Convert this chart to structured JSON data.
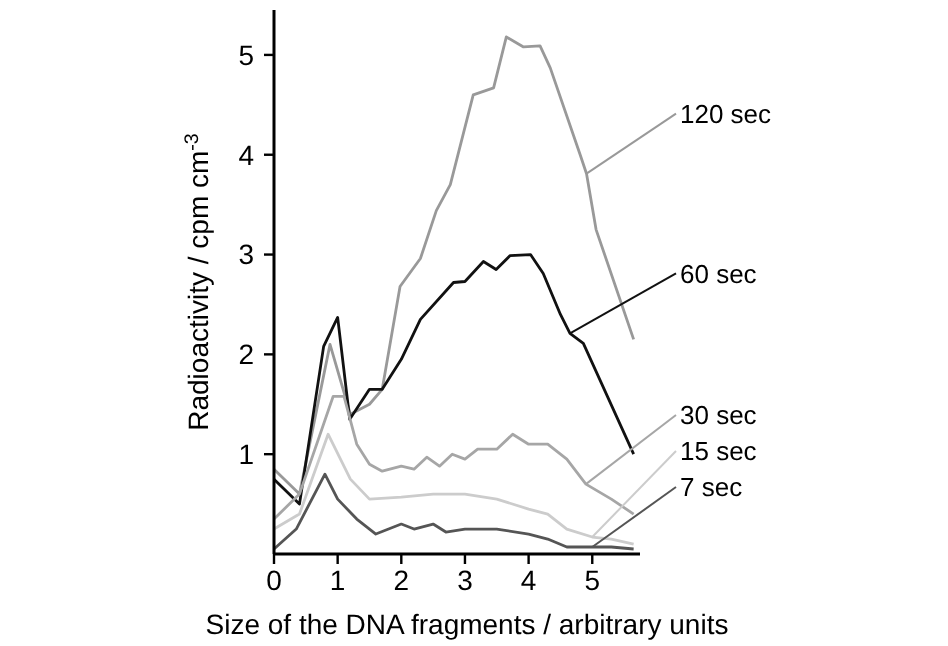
{
  "chart_data": {
    "type": "line",
    "xlabel": "Size of the DNA fragments / arbitrary units",
    "ylabel": "Radioactivity / cpm cm$^{-3}$",
    "xlim": [
      0,
      5.75
    ],
    "ylim": [
      0,
      5.45
    ],
    "xticks": [
      0,
      1,
      2,
      3,
      4,
      5
    ],
    "yticks": [
      1,
      2,
      3,
      4,
      5
    ],
    "legend": "right",
    "grid": false,
    "marker": "none",
    "line_style": "solid",
    "series": [
      {
        "name": "120 sec",
        "color": "#999999",
        "x": [
          0,
          0.4,
          0.88,
          1.2,
          1.5,
          1.7,
          1.98,
          2.3,
          2.55,
          2.77,
          3.13,
          3.45,
          3.65,
          3.92,
          4.18,
          4.34,
          4.81,
          4.91,
          5.06,
          5.65
        ],
        "values": [
          0.85,
          0.6,
          2.1,
          1.4,
          1.5,
          1.65,
          2.68,
          2.96,
          3.44,
          3.7,
          4.6,
          4.67,
          5.18,
          5.08,
          5.09,
          4.87,
          4.0,
          3.81,
          3.25,
          2.15
        ]
      },
      {
        "name": "60 sec",
        "color": "#111111",
        "x": [
          0,
          0.4,
          0.78,
          1.0,
          1.19,
          1.5,
          1.7,
          2.0,
          2.3,
          2.82,
          3.0,
          3.29,
          3.49,
          3.71,
          4.03,
          4.23,
          4.5,
          4.65,
          4.86,
          5.65
        ],
        "values": [
          0.75,
          0.5,
          2.08,
          2.37,
          1.35,
          1.65,
          1.65,
          1.95,
          2.35,
          2.72,
          2.73,
          2.93,
          2.85,
          2.99,
          3.0,
          2.81,
          2.4,
          2.21,
          2.11,
          1.0
        ]
      },
      {
        "name": "30 sec",
        "color": "#a6a6a6",
        "x": [
          0,
          0.4,
          0.93,
          1.1,
          1.3,
          1.5,
          1.7,
          2.0,
          2.2,
          2.4,
          2.6,
          2.8,
          3.0,
          3.2,
          3.5,
          3.75,
          4.0,
          4.3,
          4.6,
          4.9,
          5.3,
          5.65
        ],
        "values": [
          0.35,
          0.6,
          1.58,
          1.58,
          1.1,
          0.9,
          0.83,
          0.88,
          0.85,
          0.97,
          0.88,
          1.0,
          0.95,
          1.05,
          1.05,
          1.2,
          1.1,
          1.1,
          0.95,
          0.7,
          0.55,
          0.4
        ]
      },
      {
        "name": "15 sec",
        "color": "#cccccc",
        "x": [
          0,
          0.4,
          0.85,
          1.2,
          1.5,
          2.0,
          2.5,
          3.0,
          3.5,
          4.0,
          4.3,
          4.6,
          5.0,
          5.3,
          5.65
        ],
        "values": [
          0.25,
          0.4,
          1.2,
          0.75,
          0.55,
          0.57,
          0.6,
          0.6,
          0.55,
          0.45,
          0.4,
          0.25,
          0.17,
          0.15,
          0.1
        ]
      },
      {
        "name": "7 sec",
        "color": "#555555",
        "x": [
          0,
          0.35,
          0.8,
          1.0,
          1.3,
          1.6,
          2.0,
          2.2,
          2.5,
          2.7,
          3.0,
          3.5,
          4.0,
          4.3,
          4.6,
          5.0,
          5.3,
          5.65
        ],
        "values": [
          0.05,
          0.25,
          0.8,
          0.55,
          0.35,
          0.2,
          0.3,
          0.25,
          0.3,
          0.22,
          0.25,
          0.25,
          0.2,
          0.15,
          0.07,
          0.07,
          0.07,
          0.05
        ]
      }
    ]
  }
}
